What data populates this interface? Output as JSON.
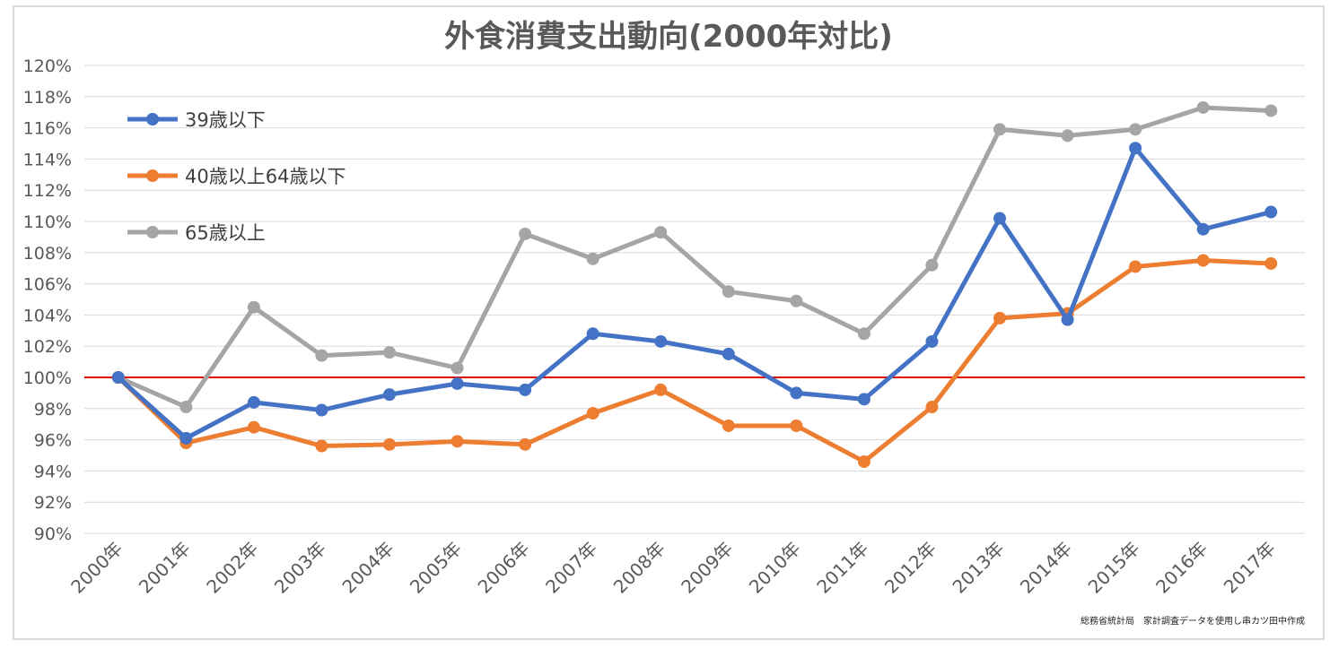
{
  "chart_data": {
    "type": "line",
    "title": "外食消費支出動向(2000年対比)",
    "categories": [
      "2000年",
      "2001年",
      "2002年",
      "2003年",
      "2004年",
      "2005年",
      "2006年",
      "2007年",
      "2008年",
      "2009年",
      "2010年",
      "2011年",
      "2012年",
      "2013年",
      "2014年",
      "2015年",
      "2016年",
      "2017年"
    ],
    "y_ticks": [
      "90%",
      "92%",
      "94%",
      "96%",
      "98%",
      "100%",
      "102%",
      "104%",
      "106%",
      "108%",
      "110%",
      "112%",
      "114%",
      "116%",
      "118%",
      "120%"
    ],
    "ylim": [
      90,
      120
    ],
    "grid": true,
    "legend_position": "top-left",
    "reference_line": {
      "value": 100,
      "color": "#e00000"
    },
    "series": [
      {
        "name": "39歳以下",
        "color": "#4472c4",
        "values": [
          100.0,
          96.1,
          98.4,
          97.9,
          98.9,
          99.6,
          99.2,
          102.8,
          102.3,
          101.5,
          99.0,
          98.6,
          102.3,
          110.2,
          103.7,
          114.7,
          109.5,
          110.6
        ]
      },
      {
        "name": "40歳以上64歳以下",
        "color": "#ed7d31",
        "values": [
          100.0,
          95.8,
          96.8,
          95.6,
          95.7,
          95.9,
          95.7,
          97.7,
          99.2,
          96.9,
          96.9,
          94.6,
          98.1,
          103.8,
          104.1,
          107.1,
          107.5,
          107.3
        ]
      },
      {
        "name": "65歳以上",
        "color": "#a5a5a5",
        "values": [
          100.0,
          98.1,
          104.5,
          101.4,
          101.6,
          100.6,
          109.2,
          107.6,
          109.3,
          105.5,
          104.9,
          102.8,
          107.2,
          115.9,
          115.5,
          115.9,
          117.3,
          117.1
        ]
      }
    ],
    "source": "総務省統計局　家計調査データを使用し串カツ田中作成"
  }
}
